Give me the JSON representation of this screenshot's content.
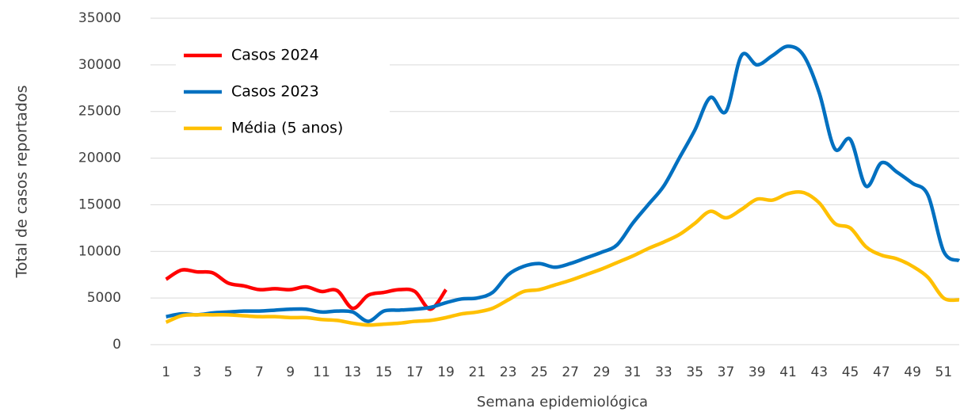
{
  "chart_data": {
    "type": "line",
    "x_label": "Semana epidemiológica",
    "y_label": "Total de casos reportados",
    "x": [
      1,
      2,
      3,
      4,
      5,
      6,
      7,
      8,
      9,
      10,
      11,
      12,
      13,
      14,
      15,
      16,
      17,
      18,
      19,
      20,
      21,
      22,
      23,
      24,
      25,
      26,
      27,
      28,
      29,
      30,
      31,
      32,
      33,
      34,
      35,
      36,
      37,
      38,
      39,
      40,
      41,
      42,
      43,
      44,
      45,
      46,
      47,
      48,
      49,
      50,
      51,
      52
    ],
    "xlim": [
      0,
      52
    ],
    "xticks": [
      1,
      3,
      5,
      7,
      9,
      11,
      13,
      15,
      17,
      19,
      21,
      23,
      25,
      27,
      29,
      31,
      33,
      35,
      37,
      39,
      41,
      43,
      45,
      47,
      49,
      51
    ],
    "ylim": [
      0,
      35000
    ],
    "yticks": [
      0,
      5000,
      10000,
      15000,
      20000,
      25000,
      30000,
      35000
    ],
    "grid": true,
    "legend": "upper left",
    "series": [
      {
        "name": "Casos 2024",
        "color": "#ff0000",
        "values": [
          7000,
          8000,
          7800,
          7700,
          6600,
          6300,
          5900,
          6000,
          5900,
          6200,
          5700,
          5800,
          3900,
          5300,
          5600,
          5900,
          5700,
          3800,
          5900,
          null,
          null,
          null,
          null,
          null,
          null,
          null,
          null,
          null,
          null,
          null,
          null,
          null,
          null,
          null,
          null,
          null,
          null,
          null,
          null,
          null,
          null,
          null,
          null,
          null,
          null,
          null,
          null,
          null,
          null,
          null,
          null,
          null
        ]
      },
      {
        "name": "Casos 2023",
        "color": "#0070c0",
        "values": [
          3000,
          3300,
          3200,
          3400,
          3500,
          3600,
          3600,
          3700,
          3800,
          3800,
          3500,
          3600,
          3500,
          2500,
          3600,
          3700,
          3800,
          4000,
          4500,
          4900,
          5000,
          5600,
          7500,
          8400,
          8700,
          8300,
          8700,
          9300,
          9900,
          10700,
          13000,
          15000,
          17000,
          20000,
          23000,
          26500,
          25000,
          31000,
          30000,
          31000,
          32000,
          31000,
          27000,
          21000,
          22000,
          17000,
          19500,
          18500,
          17300,
          16000,
          10000,
          9000
        ]
      },
      {
        "name": "Média (5 anos)",
        "color": "#ffc000",
        "values": [
          2400,
          3100,
          3200,
          3200,
          3200,
          3100,
          3000,
          3000,
          2900,
          2900,
          2700,
          2600,
          2300,
          2100,
          2200,
          2300,
          2500,
          2600,
          2900,
          3300,
          3500,
          3900,
          4800,
          5700,
          5900,
          6400,
          6900,
          7500,
          8100,
          8800,
          9500,
          10300,
          11000,
          11800,
          13000,
          14300,
          13600,
          14500,
          15600,
          15500,
          16200,
          16300,
          15200,
          13000,
          12500,
          10500,
          9600,
          9200,
          8400,
          7200,
          5000,
          4800
        ]
      }
    ]
  }
}
